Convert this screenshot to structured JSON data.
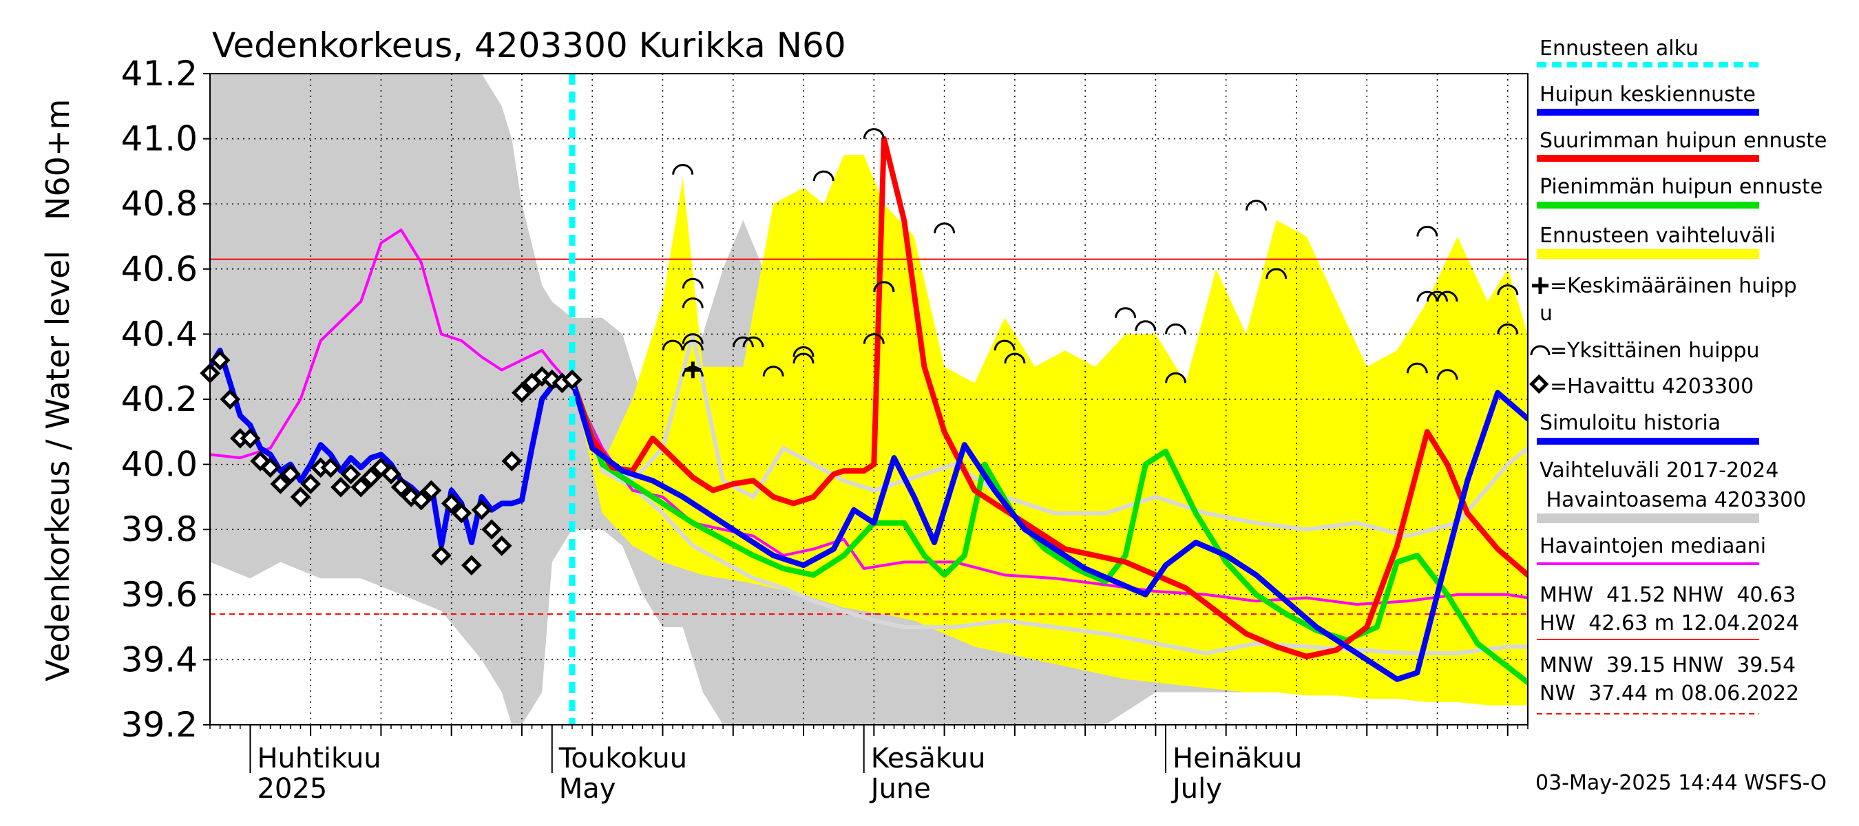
{
  "chart_data": {
    "type": "line",
    "title": "Vedenkorkeus, 4203300 Kurikka N60",
    "ylabel_fi": "Vedenkorkeus / Water level",
    "ylabel_unit": "N60+m",
    "ylim": [
      39.2,
      41.2
    ],
    "y_ticks": [
      "39.2",
      "39.4",
      "39.6",
      "39.8",
      "40.0",
      "40.2",
      "40.4",
      "40.6",
      "40.8",
      "41.0",
      "41.2"
    ],
    "x_start": "2025-03-28",
    "x_end": "2025-08-06",
    "forecast_start": "2025-05-03",
    "month_labels": [
      {
        "fi": "Huhtikuu",
        "en": "2025",
        "date": "2025-04-01"
      },
      {
        "fi": "Toukokuu",
        "en": "May",
        "date": "2025-05-01"
      },
      {
        "fi": "Kesäkuu",
        "en": "June",
        "date": "2025-06-01"
      },
      {
        "fi": "Heinäkuu",
        "en": "July",
        "date": "2025-07-01"
      }
    ],
    "hline_nhw": 40.63,
    "hline_hnw": 39.54,
    "history_band": {
      "name": "Vaihteluväli 2017-2024 Havaintoasema 4203300",
      "x": [
        "03-28",
        "04-01",
        "04-04",
        "04-08",
        "04-12",
        "04-16",
        "04-20",
        "04-24",
        "04-26",
        "04-27",
        "04-28",
        "04-30",
        "05-01",
        "05-03",
        "05-06",
        "05-08",
        "05-10",
        "05-12",
        "05-14",
        "05-16",
        "05-18",
        "05-20",
        "05-22",
        "05-24",
        "05-26",
        "05-28",
        "05-30",
        "06-01",
        "06-05",
        "06-10",
        "06-15",
        "06-20",
        "06-25",
        "06-30",
        "07-05",
        "07-10",
        "07-15",
        "07-20",
        "07-25",
        "07-30",
        "08-03",
        "08-06"
      ],
      "upper": [
        41.2,
        41.2,
        41.2,
        41.2,
        41.2,
        41.2,
        41.2,
        41.2,
        41.1,
        41.0,
        40.8,
        40.55,
        40.5,
        40.45,
        40.45,
        40.4,
        40.2,
        40.2,
        40.3,
        40.4,
        40.6,
        40.75,
        40.6,
        40.5,
        40.5,
        40.4,
        40.4,
        40.4,
        40.3,
        40.2,
        40.15,
        40.15,
        40.15,
        40.15,
        40.15,
        40.15,
        40.15,
        40.15,
        40.1,
        40.1,
        40.1,
        40.1
      ],
      "lower": [
        39.7,
        39.65,
        39.7,
        39.65,
        39.65,
        39.6,
        39.55,
        39.4,
        39.3,
        39.2,
        39.2,
        39.3,
        39.7,
        39.8,
        39.8,
        39.75,
        39.6,
        39.5,
        39.5,
        39.3,
        39.2,
        39.2,
        39.2,
        39.2,
        39.2,
        39.2,
        39.2,
        39.2,
        39.2,
        39.2,
        39.2,
        39.2,
        39.2,
        39.3,
        39.3,
        39.3,
        39.3,
        39.3,
        39.3,
        39.3,
        39.3,
        39.3
      ]
    },
    "forecast_band": {
      "name": "Ennusteen vaihteluväli",
      "x": [
        "05-03",
        "05-06",
        "05-09",
        "05-12",
        "05-14",
        "05-16",
        "05-18",
        "05-20",
        "05-23",
        "05-26",
        "05-28",
        "05-30",
        "06-01",
        "06-03",
        "06-06",
        "06-09",
        "06-12",
        "06-15",
        "06-18",
        "06-21",
        "06-24",
        "06-27",
        "06-30",
        "07-03",
        "07-06",
        "07-09",
        "07-12",
        "07-15",
        "07-18",
        "07-21",
        "07-24",
        "07-27",
        "07-30",
        "08-02",
        "08-04",
        "08-06"
      ],
      "upper": [
        40.26,
        40.0,
        40.2,
        40.5,
        40.88,
        40.3,
        40.3,
        40.3,
        40.8,
        40.85,
        40.8,
        40.95,
        40.95,
        40.8,
        40.7,
        40.3,
        40.25,
        40.45,
        40.3,
        40.35,
        40.3,
        40.4,
        40.4,
        40.25,
        40.6,
        40.4,
        40.75,
        40.7,
        40.5,
        40.3,
        40.35,
        40.5,
        40.7,
        40.5,
        40.6,
        40.4
      ],
      "lower": [
        40.26,
        39.85,
        39.75,
        39.7,
        39.68,
        39.66,
        39.65,
        39.64,
        39.62,
        39.6,
        39.58,
        39.56,
        39.55,
        39.54,
        39.52,
        39.48,
        39.44,
        39.42,
        39.4,
        39.38,
        39.36,
        39.34,
        39.33,
        39.32,
        39.31,
        39.3,
        39.3,
        39.29,
        39.29,
        39.28,
        39.28,
        39.27,
        39.27,
        39.26,
        39.26,
        39.26
      ]
    },
    "series": [
      {
        "name": "Havaittu 4203300",
        "kind": "observed",
        "x": [
          "03-28",
          "03-29",
          "03-30",
          "03-31",
          "04-01",
          "04-02",
          "04-03",
          "04-04",
          "04-05",
          "04-06",
          "04-07",
          "04-08",
          "04-09",
          "04-10",
          "04-11",
          "04-12",
          "04-13",
          "04-14",
          "04-15",
          "04-16",
          "04-17",
          "04-18",
          "04-19",
          "04-20",
          "04-21",
          "04-22",
          "04-23",
          "04-24",
          "04-25",
          "04-26",
          "04-27",
          "04-28",
          "04-29",
          "04-30",
          "05-01",
          "05-02",
          "05-03"
        ],
        "y": [
          40.28,
          40.32,
          40.2,
          40.08,
          40.08,
          40.01,
          39.99,
          39.94,
          39.97,
          39.9,
          39.94,
          39.99,
          39.99,
          39.93,
          39.97,
          39.93,
          39.96,
          39.99,
          39.97,
          39.93,
          39.9,
          39.89,
          39.92,
          39.72,
          39.88,
          39.85,
          39.69,
          39.86,
          39.8,
          39.75,
          40.01,
          40.22,
          40.25,
          40.27,
          40.26,
          40.25,
          40.26
        ]
      },
      {
        "name": "Simuloitu historia",
        "color": "#0000ff",
        "x": [
          "03-28",
          "03-29",
          "03-30",
          "03-31",
          "04-01",
          "04-02",
          "04-03",
          "04-04",
          "04-05",
          "04-06",
          "04-07",
          "04-08",
          "04-09",
          "04-10",
          "04-11",
          "04-12",
          "04-13",
          "04-14",
          "04-15",
          "04-16",
          "04-17",
          "04-18",
          "04-19",
          "04-20",
          "04-21",
          "04-22",
          "04-23",
          "04-24",
          "04-25",
          "04-26",
          "04-27",
          "04-28",
          "04-29",
          "04-30",
          "05-01",
          "05-02",
          "05-03"
        ],
        "y": [
          40.3,
          40.35,
          40.25,
          40.15,
          40.12,
          40.05,
          40.03,
          39.98,
          40.0,
          39.95,
          40.0,
          40.06,
          40.03,
          39.98,
          40.02,
          39.99,
          40.02,
          40.03,
          40.0,
          39.95,
          39.93,
          39.9,
          39.94,
          39.75,
          39.92,
          39.88,
          39.76,
          39.9,
          39.86,
          39.88,
          39.88,
          39.89,
          40.05,
          40.2,
          40.24,
          40.25,
          40.26
        ]
      },
      {
        "name": "Havaintojen mediaani",
        "color": "#ff00ff",
        "x": [
          "03-28",
          "03-31",
          "04-03",
          "04-06",
          "04-08",
          "04-12",
          "04-14",
          "04-16",
          "04-18",
          "04-20",
          "04-22",
          "04-24",
          "04-26",
          "04-28",
          "04-30",
          "05-01",
          "05-03",
          "05-06",
          "05-09",
          "05-12",
          "05-15",
          "05-18",
          "05-21",
          "05-24",
          "05-27",
          "05-30",
          "06-01",
          "06-05",
          "06-10",
          "06-15",
          "06-20",
          "06-25",
          "06-30",
          "07-05",
          "07-10",
          "07-15",
          "07-20",
          "07-25",
          "07-30",
          "08-04",
          "08-06"
        ],
        "y": [
          40.03,
          40.02,
          40.05,
          40.2,
          40.38,
          40.5,
          40.68,
          40.72,
          40.62,
          40.4,
          40.38,
          40.33,
          40.29,
          40.32,
          40.35,
          40.31,
          40.24,
          40.05,
          39.92,
          39.9,
          39.82,
          39.8,
          39.78,
          39.72,
          39.74,
          39.77,
          39.68,
          39.7,
          39.7,
          39.66,
          39.65,
          39.63,
          39.61,
          39.6,
          39.58,
          39.59,
          39.57,
          39.58,
          39.6,
          39.6,
          39.59
        ]
      },
      {
        "name": "Huipun keskiennuste",
        "color": "#0000ff",
        "x": [
          "05-03",
          "05-05",
          "05-08",
          "05-11",
          "05-14",
          "05-17",
          "05-20",
          "05-23",
          "05-26",
          "05-29",
          "05-31",
          "06-02",
          "06-04",
          "06-06",
          "06-08",
          "06-11",
          "06-14",
          "06-17",
          "06-20",
          "06-23",
          "06-26",
          "06-29",
          "07-01",
          "07-04",
          "07-07",
          "07-10",
          "07-13",
          "07-16",
          "07-19",
          "07-22",
          "07-24",
          "07-26",
          "07-28",
          "07-31",
          "08-03",
          "08-06"
        ],
        "y": [
          40.26,
          40.05,
          39.98,
          39.95,
          39.9,
          39.84,
          39.78,
          39.72,
          39.69,
          39.74,
          39.86,
          39.82,
          40.02,
          39.9,
          39.76,
          40.06,
          39.92,
          39.8,
          39.74,
          39.68,
          39.64,
          39.6,
          39.69,
          39.76,
          39.72,
          39.66,
          39.58,
          39.5,
          39.44,
          39.38,
          39.34,
          39.36,
          39.6,
          39.95,
          40.22,
          40.14
        ]
      },
      {
        "name": "Suurimman huipun ennuste",
        "color": "#ff0000",
        "x": [
          "05-03",
          "05-05",
          "05-07",
          "05-09",
          "05-11",
          "05-13",
          "05-15",
          "05-17",
          "05-19",
          "05-21",
          "05-23",
          "05-25",
          "05-27",
          "05-29",
          "05-30",
          "06-01",
          "06-02",
          "06-03",
          "06-05",
          "06-07",
          "06-09",
          "06-12",
          "06-15",
          "06-18",
          "06-21",
          "06-24",
          "06-27",
          "06-30",
          "07-03",
          "07-06",
          "07-09",
          "07-12",
          "07-15",
          "07-18",
          "07-21",
          "07-24",
          "07-27",
          "07-29",
          "07-31",
          "08-03",
          "08-06"
        ],
        "y": [
          40.26,
          40.08,
          39.99,
          39.98,
          40.08,
          40.02,
          39.96,
          39.92,
          39.94,
          39.95,
          39.9,
          39.88,
          39.9,
          39.97,
          39.98,
          39.98,
          40.0,
          41.0,
          40.75,
          40.3,
          40.1,
          39.92,
          39.86,
          39.8,
          39.74,
          39.72,
          39.7,
          39.66,
          39.62,
          39.55,
          39.48,
          39.44,
          39.41,
          39.43,
          39.5,
          39.75,
          40.1,
          40.0,
          39.85,
          39.74,
          39.66
        ]
      },
      {
        "name": "Pienimmän huipun ennuste",
        "color": "#00e000",
        "x": [
          "05-03",
          "05-06",
          "05-09",
          "05-12",
          "05-15",
          "05-18",
          "05-21",
          "05-24",
          "05-27",
          "05-30",
          "06-02",
          "06-05",
          "06-07",
          "06-09",
          "06-11",
          "06-13",
          "06-16",
          "06-19",
          "06-22",
          "06-25",
          "06-27",
          "06-29",
          "07-01",
          "07-04",
          "07-07",
          "07-10",
          "07-13",
          "07-16",
          "07-19",
          "07-22",
          "07-24",
          "07-26",
          "07-29",
          "08-01",
          "08-06"
        ],
        "y": [
          40.26,
          40.0,
          39.94,
          39.88,
          39.82,
          39.77,
          39.72,
          39.68,
          39.66,
          39.72,
          39.82,
          39.82,
          39.72,
          39.66,
          39.72,
          40.0,
          39.84,
          39.74,
          39.68,
          39.64,
          39.72,
          40.0,
          40.04,
          39.85,
          39.7,
          39.6,
          39.54,
          39.49,
          39.46,
          39.5,
          39.7,
          39.72,
          39.6,
          39.45,
          39.33
        ]
      }
    ],
    "gray_lines": [
      {
        "name": "history-line-a",
        "x": [
          "05-03",
          "05-06",
          "05-09",
          "05-12",
          "05-15",
          "05-18",
          "05-21",
          "05-24",
          "05-27",
          "05-30",
          "06-02",
          "06-05",
          "06-10",
          "06-15",
          "06-20",
          "06-25",
          "06-30",
          "07-05",
          "07-10",
          "07-15",
          "07-20",
          "07-25",
          "07-30",
          "08-04",
          "08-06"
        ],
        "y": [
          40.26,
          40.0,
          39.95,
          40.05,
          40.4,
          39.95,
          39.9,
          40.05,
          40.0,
          39.95,
          39.92,
          39.95,
          40.0,
          39.9,
          39.85,
          39.85,
          39.9,
          39.85,
          39.82,
          39.8,
          39.82,
          39.78,
          39.82,
          40.0,
          40.05
        ]
      },
      {
        "name": "history-line-b",
        "x": [
          "05-03",
          "05-06",
          "05-09",
          "05-12",
          "05-15",
          "05-18",
          "05-21",
          "05-24",
          "05-27",
          "05-30",
          "06-02",
          "06-05",
          "06-10",
          "06-15",
          "06-20",
          "06-25",
          "06-30",
          "07-05",
          "07-10",
          "07-15",
          "07-20",
          "07-25",
          "07-30",
          "08-04",
          "08-06"
        ],
        "y": [
          40.26,
          39.98,
          39.93,
          39.85,
          39.75,
          39.7,
          39.65,
          39.62,
          39.58,
          39.55,
          39.52,
          39.5,
          39.5,
          39.52,
          39.5,
          39.48,
          39.45,
          39.42,
          39.45,
          39.44,
          39.43,
          39.42,
          39.42,
          39.44,
          39.44
        ]
      }
    ],
    "peaks": {
      "x": [
        "05-13",
        "05-14",
        "05-15",
        "05-15",
        "05-15",
        "05-15",
        "05-15",
        "05-20",
        "05-21",
        "05-23",
        "05-26",
        "05-26",
        "05-28",
        "06-02",
        "06-02",
        "06-03",
        "06-03",
        "06-09",
        "06-15",
        "06-16",
        "06-27",
        "06-29",
        "07-02",
        "07-02",
        "07-10",
        "07-12",
        "07-26",
        "07-27",
        "07-27",
        "07-28",
        "07-29",
        "07-29",
        "08-04",
        "08-04"
      ],
      "y": [
        40.35,
        40.89,
        40.54,
        40.48,
        40.37,
        40.35,
        40.27,
        40.36,
        40.36,
        40.27,
        40.31,
        40.33,
        40.87,
        41.0,
        40.37,
        40.53,
        40.53,
        40.71,
        40.35,
        40.31,
        40.45,
        40.41,
        40.4,
        40.25,
        40.78,
        40.57,
        40.28,
        40.7,
        40.5,
        40.5,
        40.26,
        40.5,
        40.4,
        40.52
      ]
    },
    "mean_peak": {
      "x": "05-15",
      "y": 40.29
    },
    "legend": {
      "forecast_start": "Ennusteen alku",
      "mean_forecast": "Huipun keskiennuste",
      "max_forecast": "Suurimman huipun ennuste",
      "min_forecast": "Pienimmän huipun ennuste",
      "forecast_range": "Ennusteen vaihteluväli",
      "mean_peak": "=Keskimääräinen huipp",
      "mean_peak_cont": "u",
      "single_peak": "=Yksittäinen huippu",
      "observed": "=Havaittu 4203300",
      "simulated": "Simuloitu historia",
      "history_range_1": "Vaihteluväli 2017-2024",
      "history_range_2": " Havaintoasema 4203300",
      "median": "Havaintojen mediaani",
      "stats_1": "MHW  41.52 NHW  40.63",
      "stats_2": "HW  42.63 m 12.04.2024",
      "stats_3": "MNW  39.15 HNW  39.54",
      "stats_4": "NW  37.44 m 08.06.2022"
    },
    "footer": "03-May-2025 14:44 WSFS-O",
    "colors": {
      "forecast_start": "#00ffff",
      "mean": "#0000ff",
      "max": "#ff0000",
      "min": "#00e000",
      "band": "#ffff00",
      "history": "#cccccc",
      "median": "#ff00ff",
      "gray_line": "#d8d8d8"
    }
  }
}
